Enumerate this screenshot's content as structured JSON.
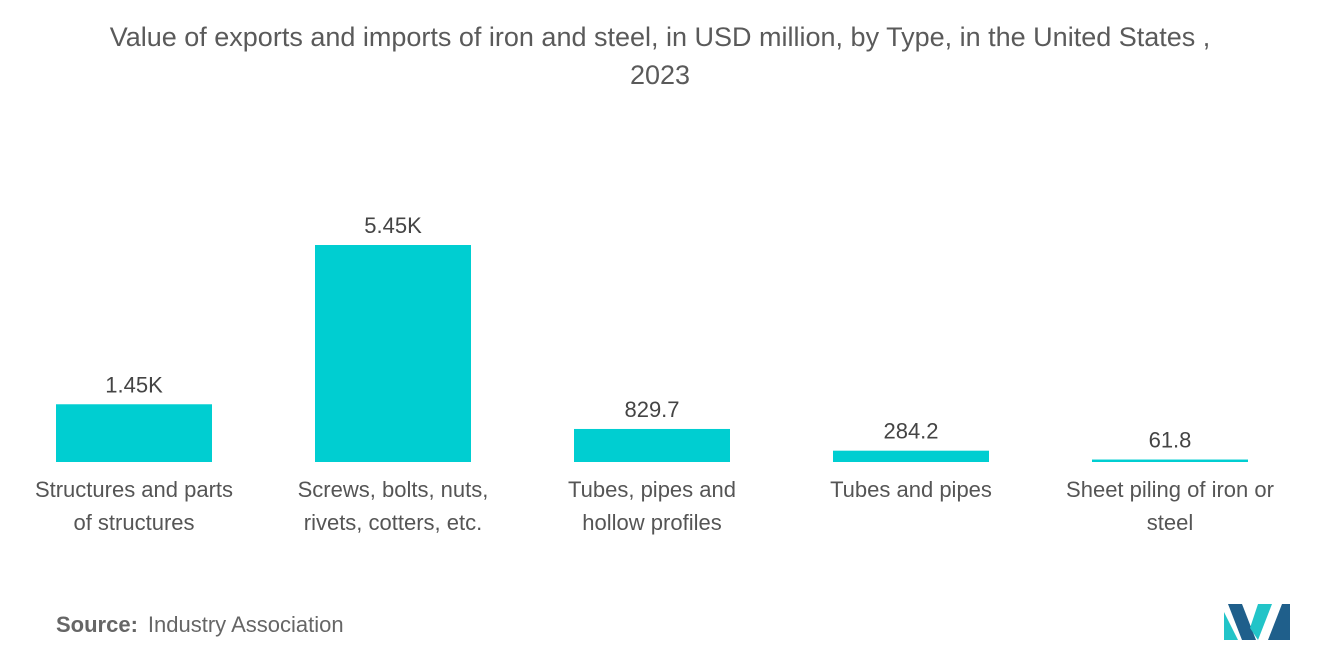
{
  "title_line1": "Value of exports and imports of iron and steel, in USD million, by Type, in the United States ,",
  "title_line2": "2023",
  "source": {
    "label": "Source:",
    "value": "Industry Association"
  },
  "colors": {
    "bar": "#00CED1",
    "logo_dark": "#1f5f8b",
    "logo_light": "#22c4c8"
  },
  "logo_icon": "mordor-intelligence-logo",
  "chart_data": {
    "type": "bar",
    "title": "Value of exports and imports of iron and steel, in USD million, by Type, in the United States , 2023",
    "categories": [
      [
        "Structures and parts",
        "of structures"
      ],
      [
        "Screws, bolts, nuts,",
        "rivets, cotters, etc."
      ],
      [
        "Tubes, pipes and",
        "hollow profiles"
      ],
      [
        "Tubes and pipes"
      ],
      [
        "Sheet piling of iron or",
        "steel"
      ]
    ],
    "values": [
      1450,
      5450,
      829.7,
      284.2,
      61.8
    ],
    "value_labels": [
      "1.45K",
      "5.45K",
      "829.7",
      "284.2",
      "61.8"
    ],
    "xlabel": "",
    "ylabel": "",
    "ylim": [
      0,
      5450
    ],
    "grid": false,
    "legend": "none"
  }
}
